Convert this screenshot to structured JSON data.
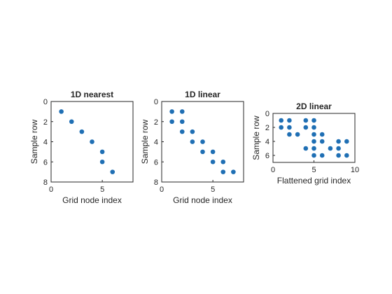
{
  "colors": {
    "marker": "#1f6fb4",
    "axis": "#262626"
  },
  "chart_data": [
    {
      "type": "scatter",
      "title": "1D nearest",
      "xlabel": "Grid node index",
      "ylabel": "Sample row",
      "xlim": [
        0,
        8
      ],
      "ylim": [
        0,
        8
      ],
      "y_reversed": true,
      "xticks": [
        0,
        5
      ],
      "yticks": [
        0,
        2,
        4,
        6,
        8
      ],
      "grid": false,
      "points": [
        [
          1,
          1
        ],
        [
          2,
          2
        ],
        [
          3,
          3
        ],
        [
          4,
          4
        ],
        [
          5,
          5
        ],
        [
          5,
          6
        ],
        [
          6,
          7
        ]
      ]
    },
    {
      "type": "scatter",
      "title": "1D linear",
      "xlabel": "Grid node index",
      "ylabel": "Sample row",
      "xlim": [
        0,
        8
      ],
      "ylim": [
        0,
        8
      ],
      "y_reversed": true,
      "xticks": [
        0,
        5
      ],
      "yticks": [
        0,
        2,
        4,
        6,
        8
      ],
      "grid": false,
      "points": [
        [
          1,
          1
        ],
        [
          2,
          1
        ],
        [
          1,
          2
        ],
        [
          2,
          2
        ],
        [
          2,
          3
        ],
        [
          3,
          3
        ],
        [
          3,
          4
        ],
        [
          4,
          4
        ],
        [
          4,
          5
        ],
        [
          5,
          5
        ],
        [
          5,
          6
        ],
        [
          6,
          6
        ],
        [
          6,
          7
        ],
        [
          7,
          7
        ]
      ]
    },
    {
      "type": "scatter",
      "title": "2D linear",
      "xlabel": "Flattened grid index",
      "ylabel": "Sample row",
      "xlim": [
        0,
        10
      ],
      "ylim": [
        0,
        7
      ],
      "y_reversed": true,
      "xticks": [
        0,
        5,
        10
      ],
      "yticks": [
        0,
        2,
        4,
        6
      ],
      "grid": false,
      "points": [
        [
          1,
          1
        ],
        [
          2,
          1
        ],
        [
          4,
          1
        ],
        [
          5,
          1
        ],
        [
          1,
          2
        ],
        [
          2,
          2
        ],
        [
          4,
          2
        ],
        [
          5,
          2
        ],
        [
          2,
          3
        ],
        [
          3,
          3
        ],
        [
          5,
          3
        ],
        [
          6,
          3
        ],
        [
          5,
          4
        ],
        [
          6,
          4
        ],
        [
          8,
          4
        ],
        [
          9,
          4
        ],
        [
          4,
          5
        ],
        [
          5,
          5
        ],
        [
          7,
          5
        ],
        [
          8,
          5
        ],
        [
          5,
          6
        ],
        [
          6,
          6
        ],
        [
          8,
          6
        ],
        [
          9,
          6
        ]
      ]
    }
  ]
}
